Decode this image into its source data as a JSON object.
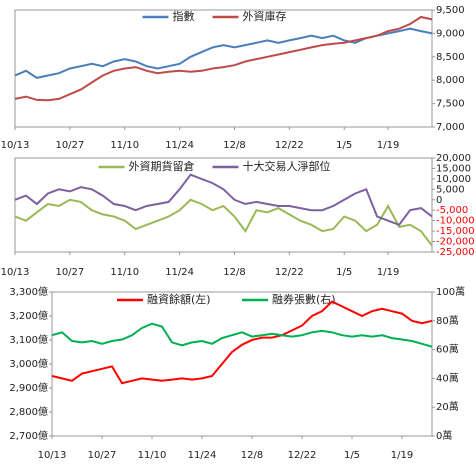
{
  "chart_data": [
    {
      "type": "line",
      "legend": "top",
      "grid": false,
      "categories": [
        "10/13",
        null,
        null,
        null,
        null,
        "10/27",
        null,
        null,
        null,
        null,
        "11/10",
        null,
        null,
        null,
        null,
        "11/24",
        null,
        null,
        null,
        null,
        "12/8",
        null,
        null,
        null,
        null,
        "12/22",
        null,
        null,
        null,
        null,
        "1/5",
        null,
        null,
        null,
        "1/19",
        null,
        null,
        null,
        null
      ],
      "ylim": [
        7000,
        9500
      ],
      "yticks": [
        {
          "value": 7000,
          "label": "7,000"
        },
        {
          "value": 7500,
          "label": "7,500"
        },
        {
          "value": 8000,
          "label": "8,000"
        },
        {
          "value": 8500,
          "label": "8,500"
        },
        {
          "value": 9000,
          "label": "9,000"
        },
        {
          "value": 9500,
          "label": "9,500"
        }
      ],
      "series": [
        {
          "name": "指數",
          "color": "#4a7ebb",
          "values": [
            8100,
            8200,
            8050,
            8100,
            8150,
            8250,
            8300,
            8350,
            8300,
            8400,
            8450,
            8400,
            8300,
            8250,
            8300,
            8350,
            8500,
            8600,
            8700,
            8750,
            8700,
            8750,
            8800,
            8850,
            8800,
            8850,
            8900,
            8950,
            8900,
            8950,
            8850,
            8800,
            8900,
            8950,
            9000,
            9050,
            9100,
            9050,
            9000
          ]
        },
        {
          "name": "外資庫存",
          "color": "#be4b48",
          "values": [
            7600,
            7650,
            7580,
            7570,
            7600,
            7700,
            7800,
            7950,
            8100,
            8200,
            8250,
            8280,
            8200,
            8150,
            8180,
            8200,
            8180,
            8200,
            8250,
            8280,
            8320,
            8400,
            8450,
            8500,
            8550,
            8600,
            8650,
            8700,
            8750,
            8780,
            8800,
            8850,
            8900,
            8950,
            9050,
            9100,
            9200,
            9350,
            9300
          ]
        }
      ]
    },
    {
      "type": "line",
      "legend": "top",
      "grid": false,
      "negative_tick_color": "#ff0000",
      "categories": [
        "10/13",
        null,
        null,
        null,
        null,
        "10/27",
        null,
        null,
        null,
        null,
        "11/10",
        null,
        null,
        null,
        null,
        "11/24",
        null,
        null,
        null,
        null,
        "12/8",
        null,
        null,
        null,
        null,
        "12/22",
        null,
        null,
        null,
        null,
        "1/5",
        null,
        null,
        null,
        "1/19",
        null,
        null,
        null,
        null
      ],
      "ylim": [
        -25000,
        20000
      ],
      "yticks": [
        {
          "value": -25000,
          "label": "-25,000"
        },
        {
          "value": -20000,
          "label": "-20,000"
        },
        {
          "value": -15000,
          "label": "-15,000"
        },
        {
          "value": -10000,
          "label": "-10,000"
        },
        {
          "value": -5000,
          "label": "-5,000"
        },
        0,
        {
          "value": 5000,
          "label": "5,000"
        },
        {
          "value": 10000,
          "label": "10,000"
        },
        {
          "value": 15000,
          "label": "15,000"
        },
        {
          "value": 20000,
          "label": "20,000"
        }
      ],
      "series": [
        {
          "name": "外資期貨留倉",
          "color": "#98b954",
          "values": [
            -8000,
            -10000,
            -6000,
            -2000,
            -3000,
            0,
            -1000,
            -5000,
            -7000,
            -8000,
            -10000,
            -14000,
            -12000,
            -10000,
            -8000,
            -5000,
            0,
            -2000,
            -5000,
            -3000,
            -8000,
            -15000,
            -5000,
            -6000,
            -4000,
            -7000,
            -10000,
            -12000,
            -15000,
            -14000,
            -8000,
            -10000,
            -15000,
            -12000,
            -3000,
            -13000,
            -12000,
            -15000,
            -22000
          ]
        },
        {
          "name": "十大交易人淨部位",
          "color": "#7d60a0",
          "values": [
            0,
            2000,
            -2000,
            3000,
            5000,
            4000,
            6000,
            5000,
            2000,
            -2000,
            -3000,
            -5000,
            -3000,
            -2000,
            -1000,
            5000,
            12000,
            10000,
            8000,
            5000,
            0,
            -2000,
            -1000,
            -2000,
            -3000,
            -3000,
            -4000,
            -5000,
            -5000,
            -3000,
            0,
            3000,
            5000,
            -8000,
            -10000,
            -12000,
            -5000,
            -4000,
            -8000
          ]
        }
      ]
    },
    {
      "type": "line",
      "legend": "top",
      "grid": false,
      "categories": [
        "10/13",
        null,
        null,
        null,
        null,
        "10/27",
        null,
        null,
        null,
        null,
        "11/10",
        null,
        null,
        null,
        null,
        "11/24",
        null,
        null,
        null,
        null,
        "12/8",
        null,
        null,
        null,
        null,
        "12/22",
        null,
        null,
        null,
        null,
        "1/5",
        null,
        null,
        null,
        null,
        "1/19",
        null,
        null,
        null
      ],
      "ylim": [
        2700,
        3300
      ],
      "yticks": [
        {
          "value": 2700,
          "label": "2,700億"
        },
        {
          "value": 2800,
          "label": "2,800億"
        },
        {
          "value": 2900,
          "label": "2,900億"
        },
        {
          "value": 3000,
          "label": "3,000億"
        },
        {
          "value": 3100,
          "label": "3,100億"
        },
        {
          "value": 3200,
          "label": "3,200億"
        },
        {
          "value": 3300,
          "label": "3,300億"
        }
      ],
      "y2lim": [
        0,
        100
      ],
      "y2ticks": [
        {
          "value": 0,
          "label": "0萬"
        },
        {
          "value": 20,
          "label": "20萬"
        },
        {
          "value": 40,
          "label": "40萬"
        },
        {
          "value": 60,
          "label": "60萬"
        },
        {
          "value": 80,
          "label": "80萬"
        },
        {
          "value": 100,
          "label": "100萬"
        }
      ],
      "series": [
        {
          "name": "融資餘額(左)",
          "color": "#ff0000",
          "values": [
            2950,
            2940,
            2930,
            2960,
            2970,
            2980,
            2990,
            2920,
            2930,
            2940,
            2935,
            2930,
            2935,
            2940,
            2935,
            2940,
            2950,
            3000,
            3050,
            3080,
            3100,
            3110,
            3110,
            3120,
            3140,
            3160,
            3200,
            3220,
            3260,
            3240,
            3220,
            3200,
            3220,
            3230,
            3220,
            3210,
            3180,
            3170,
            3180
          ]
        },
        {
          "name": "融券張數(右)",
          "color": "#00b050",
          "axis": "y2",
          "values": [
            70,
            72,
            66,
            65,
            66,
            64,
            66,
            67,
            70,
            75,
            78,
            76,
            65,
            63,
            65,
            66,
            64,
            68,
            70,
            72,
            69,
            70,
            71,
            70,
            69,
            70,
            72,
            73,
            72,
            70,
            69,
            70,
            69,
            70,
            68,
            67,
            66,
            64,
            62
          ]
        }
      ]
    }
  ]
}
